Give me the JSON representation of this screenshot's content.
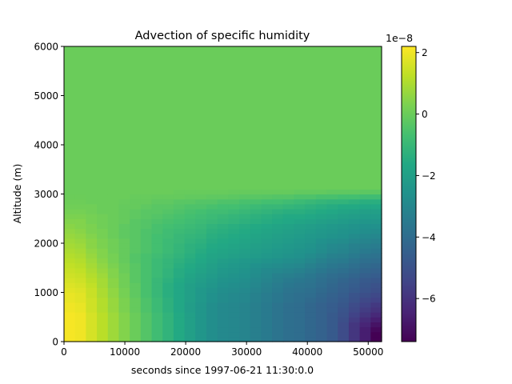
{
  "chart_data": {
    "type": "heatmap",
    "title": "Advection of specific humidity",
    "xlabel": "seconds since 1997-06-21 11:30:0.0",
    "ylabel": "Altitude (m)",
    "xlim": [
      0,
      52200
    ],
    "ylim": [
      0,
      6000
    ],
    "x_ticks": [
      "0",
      "10000",
      "20000",
      "30000",
      "40000",
      "50000"
    ],
    "y_ticks": [
      "0",
      "1000",
      "2000",
      "3000",
      "4000",
      "5000",
      "6000"
    ],
    "colormap": "viridis",
    "colorbar": {
      "scale_label": "1e−8",
      "range": [
        -7.4,
        2.2
      ],
      "ticks": [
        "2",
        "0",
        "−2",
        "−4",
        "−6"
      ],
      "tick_values": [
        2,
        0,
        -2,
        -4,
        -6
      ]
    },
    "x_edges": [
      0,
      1800,
      3600,
      5400,
      7200,
      9000,
      10800,
      12600,
      14400,
      16200,
      18000,
      19800,
      21600,
      23400,
      25200,
      27000,
      28800,
      30600,
      32400,
      34200,
      36000,
      37800,
      39600,
      41400,
      43200,
      45000,
      46800,
      48600,
      50400,
      52200
    ],
    "altitude_edges": [
      0,
      100,
      200,
      300,
      400,
      500,
      600,
      700,
      800,
      900,
      1000,
      1100,
      1200,
      1300,
      1400,
      1500,
      1600,
      1700,
      1800,
      1900,
      2000,
      2100,
      2200,
      2300,
      2400,
      2500,
      2600,
      2700,
      2800,
      2900,
      3000,
      3100,
      6000
    ],
    "values_1e-8": [
      [
        2.1,
        2.0,
        1.6,
        1.2,
        0.8,
        0.4,
        0.0,
        -0.4,
        -0.8,
        -1.2,
        -1.6,
        -2.0,
        -2.4,
        -2.7,
        -2.9,
        -3.0,
        -3.1,
        -3.3,
        -3.5,
        -3.7,
        -3.9,
        -4.0,
        -4.2,
        -4.4,
        -4.7,
        -5.2,
        -5.9,
        -6.6,
        -7.4
      ],
      [
        2.1,
        2.0,
        1.6,
        1.2,
        0.8,
        0.4,
        0.0,
        -0.4,
        -0.8,
        -1.2,
        -1.6,
        -2.0,
        -2.4,
        -2.7,
        -2.9,
        -3.0,
        -3.1,
        -3.3,
        -3.5,
        -3.7,
        -3.9,
        -4.0,
        -4.2,
        -4.4,
        -4.7,
        -5.2,
        -5.9,
        -6.6,
        -7.4
      ],
      [
        2.1,
        2.0,
        1.6,
        1.2,
        0.8,
        0.4,
        0.0,
        -0.4,
        -0.8,
        -1.2,
        -1.6,
        -2.0,
        -2.4,
        -2.7,
        -2.9,
        -3.0,
        -3.1,
        -3.3,
        -3.5,
        -3.7,
        -3.9,
        -4.0,
        -4.2,
        -4.4,
        -4.7,
        -5.2,
        -5.9,
        -6.6,
        -7.2
      ],
      [
        2.1,
        2.0,
        1.6,
        1.2,
        0.8,
        0.4,
        0.0,
        -0.4,
        -0.8,
        -1.2,
        -1.6,
        -2.0,
        -2.4,
        -2.7,
        -2.9,
        -3.0,
        -3.1,
        -3.3,
        -3.5,
        -3.7,
        -3.9,
        -4.0,
        -4.2,
        -4.4,
        -4.7,
        -5.2,
        -5.9,
        -6.4,
        -6.9
      ],
      [
        2.1,
        2.0,
        1.6,
        1.2,
        0.8,
        0.4,
        0.0,
        -0.4,
        -0.8,
        -1.2,
        -1.6,
        -2.0,
        -2.4,
        -2.7,
        -2.9,
        -3.0,
        -3.1,
        -3.3,
        -3.5,
        -3.7,
        -3.9,
        -4.0,
        -4.2,
        -4.4,
        -4.7,
        -5.1,
        -5.7,
        -6.2,
        -6.6
      ],
      [
        2.1,
        2.0,
        1.6,
        1.2,
        0.8,
        0.4,
        0.0,
        -0.4,
        -0.8,
        -1.2,
        -1.6,
        -2.0,
        -2.4,
        -2.7,
        -2.9,
        -3.0,
        -3.1,
        -3.3,
        -3.5,
        -3.7,
        -3.9,
        -4.0,
        -4.2,
        -4.4,
        -4.7,
        -5.0,
        -5.5,
        -5.9,
        -6.3
      ],
      [
        2.0,
        1.9,
        1.5,
        1.1,
        0.7,
        0.3,
        -0.1,
        -0.5,
        -0.9,
        -1.3,
        -1.7,
        -2.1,
        -2.4,
        -2.7,
        -2.9,
        -3.0,
        -3.1,
        -3.3,
        -3.5,
        -3.7,
        -3.9,
        -4.0,
        -4.2,
        -4.4,
        -4.6,
        -4.9,
        -5.3,
        -5.7,
        -6.0
      ],
      [
        2.0,
        1.9,
        1.5,
        1.1,
        0.7,
        0.3,
        -0.1,
        -0.5,
        -0.9,
        -1.3,
        -1.7,
        -2.1,
        -2.4,
        -2.7,
        -2.9,
        -3.0,
        -3.1,
        -3.3,
        -3.5,
        -3.7,
        -3.9,
        -4.0,
        -4.2,
        -4.4,
        -4.6,
        -4.8,
        -5.2,
        -5.5,
        -5.8
      ],
      [
        1.9,
        1.8,
        1.5,
        1.1,
        0.7,
        0.3,
        -0.1,
        -0.5,
        -0.9,
        -1.3,
        -1.7,
        -2.0,
        -2.3,
        -2.6,
        -2.8,
        -2.9,
        -3.0,
        -3.2,
        -3.4,
        -3.6,
        -3.8,
        -3.9,
        -4.1,
        -4.3,
        -4.5,
        -4.7,
        -5.0,
        -5.3,
        -5.5
      ],
      [
        1.9,
        1.8,
        1.4,
        1.0,
        0.6,
        0.2,
        -0.2,
        -0.6,
        -1.0,
        -1.4,
        -1.7,
        -2.0,
        -2.3,
        -2.6,
        -2.8,
        -2.9,
        -3.0,
        -3.2,
        -3.4,
        -3.6,
        -3.8,
        -3.9,
        -4.0,
        -4.2,
        -4.4,
        -4.6,
        -4.9,
        -5.1,
        -5.3
      ],
      [
        1.8,
        1.7,
        1.4,
        1.0,
        0.6,
        0.2,
        -0.2,
        -0.6,
        -1.0,
        -1.4,
        -1.7,
        -2.0,
        -2.3,
        -2.5,
        -2.7,
        -2.8,
        -2.9,
        -3.1,
        -3.3,
        -3.5,
        -3.7,
        -3.8,
        -3.9,
        -4.1,
        -4.3,
        -4.5,
        -4.7,
        -4.9,
        -5.1
      ],
      [
        1.7,
        1.6,
        1.3,
        0.9,
        0.5,
        0.1,
        -0.2,
        -0.6,
        -1.0,
        -1.4,
        -1.7,
        -2.0,
        -2.2,
        -2.4,
        -2.6,
        -2.7,
        -2.8,
        -3.0,
        -3.2,
        -3.4,
        -3.6,
        -3.7,
        -3.8,
        -4.0,
        -4.2,
        -4.4,
        -4.6,
        -4.8,
        -5.0
      ],
      [
        1.6,
        1.5,
        1.2,
        0.9,
        0.5,
        0.1,
        -0.3,
        -0.6,
        -1.0,
        -1.3,
        -1.6,
        -1.9,
        -2.1,
        -2.3,
        -2.5,
        -2.6,
        -2.7,
        -2.9,
        -3.1,
        -3.3,
        -3.5,
        -3.6,
        -3.7,
        -3.9,
        -4.1,
        -4.3,
        -4.5,
        -4.7,
        -4.8
      ],
      [
        1.5,
        1.4,
        1.1,
        0.8,
        0.4,
        0.1,
        -0.3,
        -0.6,
        -0.9,
        -1.2,
        -1.5,
        -1.8,
        -2.0,
        -2.2,
        -2.4,
        -2.5,
        -2.6,
        -2.8,
        -3.0,
        -3.2,
        -3.3,
        -3.4,
        -3.6,
        -3.8,
        -4.0,
        -4.1,
        -4.3,
        -4.5,
        -4.6
      ],
      [
        1.4,
        1.3,
        1.0,
        0.7,
        0.4,
        0.0,
        -0.3,
        -0.6,
        -0.9,
        -1.2,
        -1.5,
        -1.7,
        -1.9,
        -2.1,
        -2.3,
        -2.4,
        -2.5,
        -2.7,
        -2.9,
        -3.0,
        -3.1,
        -3.2,
        -3.4,
        -3.6,
        -3.8,
        -3.9,
        -4.1,
        -4.3,
        -4.4
      ],
      [
        1.3,
        1.2,
        0.9,
        0.6,
        0.3,
        0.0,
        -0.3,
        -0.6,
        -0.9,
        -1.1,
        -1.4,
        -1.6,
        -1.8,
        -2.0,
        -2.2,
        -2.3,
        -2.4,
        -2.6,
        -2.7,
        -2.8,
        -2.9,
        -3.0,
        -3.2,
        -3.4,
        -3.6,
        -3.7,
        -3.9,
        -4.1,
        -4.2
      ],
      [
        1.2,
        1.1,
        0.8,
        0.5,
        0.2,
        -0.1,
        -0.4,
        -0.6,
        -0.9,
        -1.1,
        -1.3,
        -1.5,
        -1.7,
        -1.9,
        -2.1,
        -2.2,
        -2.3,
        -2.4,
        -2.5,
        -2.6,
        -2.7,
        -2.8,
        -3.0,
        -3.2,
        -3.4,
        -3.5,
        -3.7,
        -3.9,
        -4.0
      ],
      [
        1.1,
        1.0,
        0.7,
        0.4,
        0.2,
        -0.1,
        -0.4,
        -0.6,
        -0.8,
        -1.0,
        -1.2,
        -1.4,
        -1.6,
        -1.8,
        -1.9,
        -2.0,
        -2.1,
        -2.2,
        -2.3,
        -2.4,
        -2.5,
        -2.6,
        -2.8,
        -3.0,
        -3.2,
        -3.3,
        -3.5,
        -3.7,
        -3.8
      ],
      [
        1.0,
        0.9,
        0.6,
        0.4,
        0.1,
        -0.1,
        -0.3,
        -0.5,
        -0.7,
        -0.9,
        -1.1,
        -1.3,
        -1.5,
        -1.7,
        -1.8,
        -1.9,
        -2.0,
        -2.1,
        -2.2,
        -2.3,
        -2.4,
        -2.5,
        -2.6,
        -2.8,
        -3.0,
        -3.1,
        -3.3,
        -3.5,
        -3.6
      ],
      [
        0.9,
        0.8,
        0.5,
        0.3,
        0.1,
        -0.1,
        -0.3,
        -0.5,
        -0.7,
        -0.9,
        -1.1,
        -1.3,
        -1.4,
        -1.6,
        -1.7,
        -1.8,
        -1.9,
        -2.0,
        -2.1,
        -2.2,
        -2.3,
        -2.4,
        -2.5,
        -2.7,
        -2.9,
        -3.0,
        -3.2,
        -3.3,
        -3.4
      ],
      [
        0.8,
        0.7,
        0.5,
        0.3,
        0.1,
        -0.1,
        -0.3,
        -0.5,
        -0.7,
        -0.9,
        -1.0,
        -1.2,
        -1.3,
        -1.5,
        -1.6,
        -1.7,
        -1.8,
        -1.9,
        -2.0,
        -2.1,
        -2.2,
        -2.3,
        -2.4,
        -2.6,
        -2.7,
        -2.8,
        -3.0,
        -3.1,
        -3.2
      ],
      [
        0.7,
        0.6,
        0.4,
        0.2,
        0.0,
        -0.2,
        -0.3,
        -0.5,
        -0.7,
        -0.8,
        -1.0,
        -1.1,
        -1.2,
        -1.4,
        -1.5,
        -1.6,
        -1.7,
        -1.8,
        -1.9,
        -2.0,
        -2.1,
        -2.2,
        -2.3,
        -2.4,
        -2.5,
        -2.6,
        -2.8,
        -2.9,
        -3.0
      ],
      [
        0.6,
        0.5,
        0.3,
        0.2,
        0.0,
        -0.2,
        -0.3,
        -0.5,
        -0.6,
        -0.8,
        -0.9,
        -1.0,
        -1.1,
        -1.3,
        -1.4,
        -1.5,
        -1.6,
        -1.7,
        -1.8,
        -1.9,
        -2.0,
        -2.1,
        -2.2,
        -2.3,
        -2.4,
        -2.5,
        -2.6,
        -2.7,
        -2.8
      ],
      [
        0.5,
        0.4,
        0.3,
        0.1,
        0.0,
        -0.2,
        -0.3,
        -0.4,
        -0.6,
        -0.7,
        -0.8,
        -0.9,
        -1.0,
        -1.2,
        -1.3,
        -1.4,
        -1.5,
        -1.6,
        -1.7,
        -1.8,
        -1.9,
        -2.0,
        -2.1,
        -2.2,
        -2.3,
        -2.4,
        -2.5,
        -2.6,
        -2.6
      ],
      [
        0.4,
        0.4,
        0.2,
        0.1,
        0.0,
        -0.1,
        -0.3,
        -0.4,
        -0.5,
        -0.6,
        -0.7,
        -0.8,
        -0.9,
        -1.0,
        -1.1,
        -1.2,
        -1.3,
        -1.4,
        -1.5,
        -1.6,
        -1.7,
        -1.8,
        -1.9,
        -2.0,
        -2.1,
        -2.2,
        -2.3,
        -2.4,
        -2.4
      ],
      [
        0.3,
        0.3,
        0.2,
        0.1,
        0.0,
        -0.1,
        -0.2,
        -0.3,
        -0.4,
        -0.5,
        -0.6,
        -0.7,
        -0.8,
        -0.9,
        -1.0,
        -1.1,
        -1.2,
        -1.3,
        -1.4,
        -1.5,
        -1.6,
        -1.6,
        -1.7,
        -1.8,
        -1.9,
        -2.0,
        -2.1,
        -2.2,
        -2.2
      ],
      [
        0.2,
        0.2,
        0.1,
        0.0,
        0.0,
        -0.1,
        -0.2,
        -0.3,
        -0.3,
        -0.4,
        -0.5,
        -0.6,
        -0.7,
        -0.8,
        -0.8,
        -0.9,
        -1.0,
        -1.1,
        -1.2,
        -1.3,
        -1.4,
        -1.4,
        -1.5,
        -1.6,
        -1.7,
        -1.8,
        -1.9,
        -2.0,
        -2.0
      ],
      [
        0.1,
        0.1,
        0.1,
        0.0,
        0.0,
        -0.1,
        -0.1,
        -0.2,
        -0.3,
        -0.3,
        -0.4,
        -0.5,
        -0.5,
        -0.6,
        -0.7,
        -0.7,
        -0.8,
        -0.9,
        -1.0,
        -1.0,
        -1.1,
        -1.2,
        -1.3,
        -1.4,
        -1.5,
        -1.6,
        -1.6,
        -1.7,
        -1.7
      ],
      [
        0.05,
        0.05,
        0.0,
        0.0,
        0.0,
        -0.05,
        -0.1,
        -0.1,
        -0.2,
        -0.2,
        -0.3,
        -0.3,
        -0.4,
        -0.4,
        -0.5,
        -0.5,
        -0.6,
        -0.6,
        -0.7,
        -0.7,
        -0.8,
        -0.9,
        -1.0,
        -1.1,
        -1.2,
        -1.2,
        -1.3,
        -1.4,
        -1.4
      ],
      [
        0.02,
        0.02,
        0.0,
        0.0,
        0.0,
        0.0,
        -0.05,
        -0.05,
        -0.1,
        -0.1,
        -0.1,
        -0.15,
        -0.15,
        -0.2,
        -0.2,
        -0.25,
        -0.3,
        -0.3,
        -0.35,
        -0.4,
        -0.4,
        -0.5,
        -0.5,
        -0.6,
        -0.6,
        -0.7,
        -0.7,
        -0.8,
        -0.8
      ],
      [
        0.0,
        0.0,
        0.0,
        0.0,
        0.0,
        0.0,
        0.0,
        0.0,
        0.0,
        0.0,
        -0.05,
        -0.05,
        -0.05,
        -0.05,
        -0.05,
        -0.1,
        -0.1,
        -0.1,
        -0.1,
        -0.1,
        -0.1,
        -0.15,
        -0.15,
        -0.15,
        -0.2,
        -0.2,
        -0.2,
        -0.25,
        -0.25
      ],
      [
        0.0,
        0.0,
        0.0,
        0.0,
        0.0,
        0.0,
        0.0,
        0.0,
        0.0,
        0.0,
        0.0,
        0.0,
        0.0,
        0.0,
        0.0,
        0.0,
        0.0,
        0.0,
        0.0,
        0.0,
        0.0,
        0.0,
        0.0,
        0.0,
        0.0,
        0.0,
        0.0,
        0.0,
        0.0
      ]
    ]
  }
}
